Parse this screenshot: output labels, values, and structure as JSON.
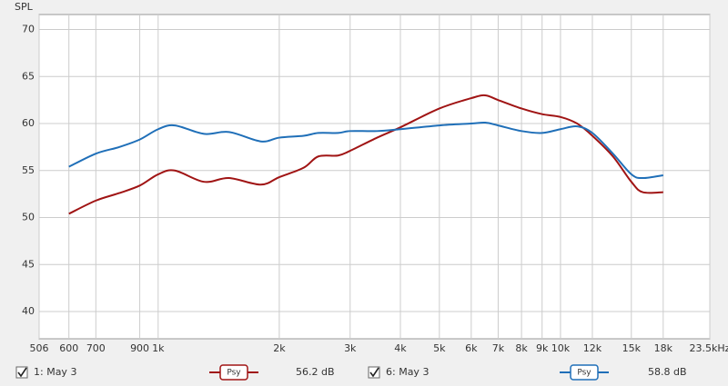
{
  "chart_data": {
    "type": "line",
    "ylabel": "SPL",
    "xscale": "log",
    "grid": true,
    "xlim": [
      506,
      23500
    ],
    "ylim": [
      37.1,
      71.6
    ],
    "xticks": [
      506,
      600,
      700,
      {
        "value": 900,
        "label": "900"
      },
      {
        "value": 1000,
        "label": "1k"
      },
      {
        "value": 2000,
        "label": "2k"
      },
      {
        "value": 3000,
        "label": "3k"
      },
      {
        "value": 4000,
        "label": "4k"
      },
      {
        "value": 5000,
        "label": "5k"
      },
      {
        "value": 6000,
        "label": "6k"
      },
      {
        "value": 7000,
        "label": "7k"
      },
      {
        "value": 8000,
        "label": "8k"
      },
      {
        "value": 9000,
        "label": "9k"
      },
      {
        "value": 10000,
        "label": "10k"
      },
      {
        "value": 12000,
        "label": "12k"
      },
      {
        "value": 15000,
        "label": "15k"
      },
      {
        "value": 18000,
        "label": "18k"
      },
      {
        "value": 23500,
        "label": "23.5kHz"
      }
    ],
    "yticks": [
      40,
      45,
      50,
      55,
      60,
      65,
      70
    ],
    "x": [
      600,
      700,
      800,
      900,
      1000,
      1100,
      1300,
      1500,
      1800,
      2000,
      2300,
      2500,
      2800,
      3000,
      3500,
      4000,
      5000,
      6000,
      6500,
      7000,
      8000,
      9000,
      10000,
      11000,
      12000,
      13500,
      15000,
      16000,
      18000
    ],
    "series": [
      {
        "name": "1: May 3",
        "color": "#a01414",
        "smoothing": "Psy",
        "level": "56.2 dB",
        "values": [
          50.4,
          51.8,
          52.6,
          53.4,
          54.6,
          55.0,
          53.8,
          54.2,
          53.5,
          54.3,
          55.3,
          56.5,
          56.6,
          57.1,
          58.5,
          59.6,
          61.6,
          62.7,
          63.0,
          62.5,
          61.6,
          61.0,
          60.7,
          60.0,
          58.7,
          56.5,
          53.8,
          52.7,
          52.7
        ]
      },
      {
        "name": "6: May 3",
        "color": "#1f6fb8",
        "smoothing": "Psy",
        "level": "58.8 dB",
        "values": [
          55.4,
          56.8,
          57.5,
          58.3,
          59.4,
          59.8,
          58.9,
          59.1,
          58.1,
          58.5,
          58.7,
          59.0,
          59.0,
          59.2,
          59.2,
          59.4,
          59.8,
          60.0,
          60.1,
          59.8,
          59.2,
          59.0,
          59.4,
          59.7,
          59.0,
          56.8,
          54.6,
          54.2,
          54.5
        ]
      }
    ]
  }
}
